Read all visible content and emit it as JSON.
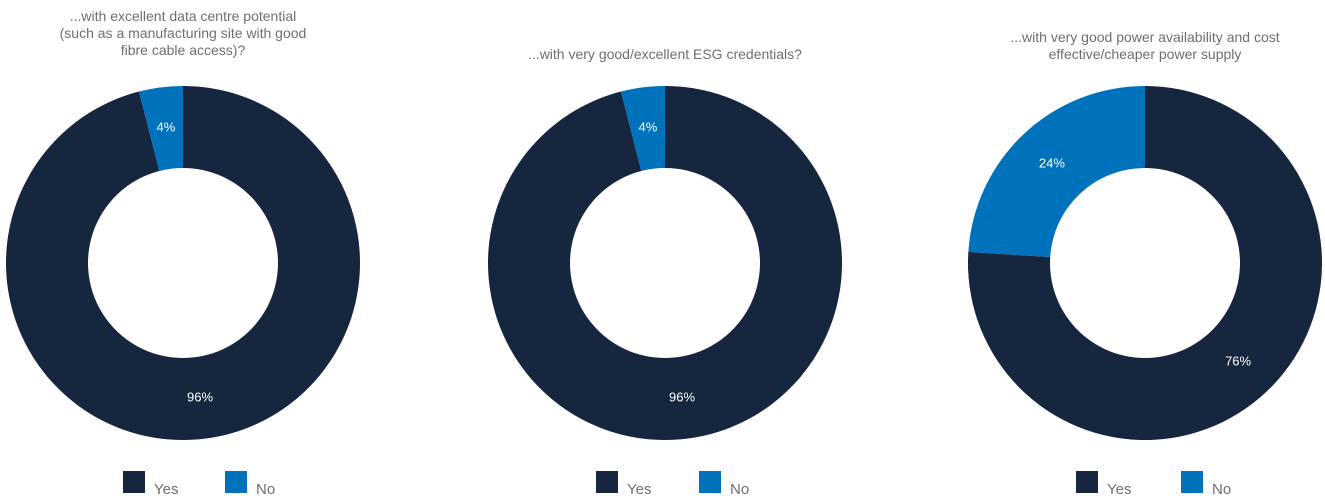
{
  "colors": {
    "yes": "#16263e",
    "no": "#0072bc"
  },
  "chart_data": [
    {
      "type": "pie",
      "title": "...with excellent data centre potential\n(such as a manufacturing site with good\nfibre cable access)?",
      "categories": [
        "Yes",
        "No"
      ],
      "values": [
        96,
        4
      ],
      "value_labels": [
        "96%",
        "4%"
      ],
      "legend": {
        "placement": "bottom",
        "entries": [
          "Yes",
          "No"
        ]
      }
    },
    {
      "type": "pie",
      "title": "...with very good/excellent ESG credentials?",
      "categories": [
        "Yes",
        "No"
      ],
      "values": [
        96,
        4
      ],
      "value_labels": [
        "96%",
        "4%"
      ],
      "legend": {
        "placement": "bottom",
        "entries": [
          "Yes",
          "No"
        ]
      }
    },
    {
      "type": "pie",
      "title": "...with very good power availability and cost\neffective/cheaper power supply",
      "categories": [
        "Yes",
        "No"
      ],
      "values": [
        76,
        24
      ],
      "value_labels": [
        "76%",
        "24%"
      ],
      "legend": {
        "placement": "bottom",
        "entries": [
          "Yes",
          "No"
        ]
      }
    }
  ]
}
